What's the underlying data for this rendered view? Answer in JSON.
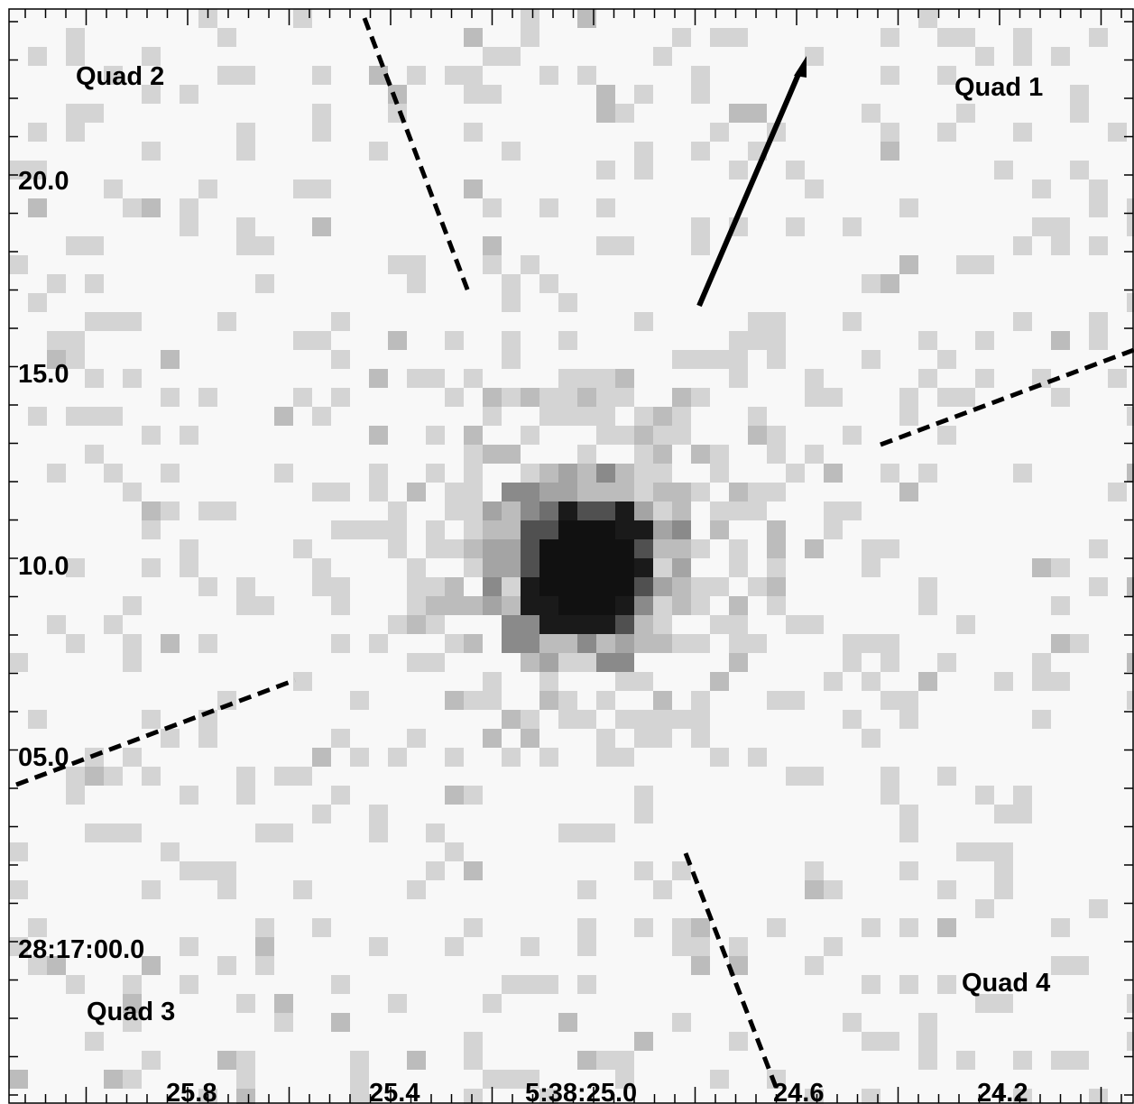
{
  "image": {
    "kind": "x-ray counts map, grayscale",
    "background_color": "#f8f8f8",
    "pixel_color_levels": [
      "#d4d4d4",
      "#bcbcbc",
      "#a4a4a4",
      "#8a8a8a",
      "#6e6e6e",
      "#505050",
      "#1a1a1a",
      "#111111"
    ]
  },
  "axes": {
    "dec_ticks": [
      {
        "label": "20.0"
      },
      {
        "label": "15.0"
      },
      {
        "label": "10.0"
      },
      {
        "label": "05.0"
      },
      {
        "label": "28:17:00.0"
      }
    ],
    "ra_ticks": [
      {
        "label": "25.8"
      },
      {
        "label": "25.4"
      },
      {
        "label": "5:38:25.0"
      },
      {
        "label": "24.6"
      },
      {
        "label": "24.2"
      }
    ]
  },
  "annotations": {
    "quadrants": [
      {
        "label": "Quad 1"
      },
      {
        "label": "Quad 2"
      },
      {
        "label": "Quad 3"
      },
      {
        "label": "Quad 4"
      }
    ],
    "dividers": [
      "dashed-line",
      "dashed-line",
      "dashed-line",
      "dashed-line"
    ],
    "arrow": "direction-arrow"
  }
}
